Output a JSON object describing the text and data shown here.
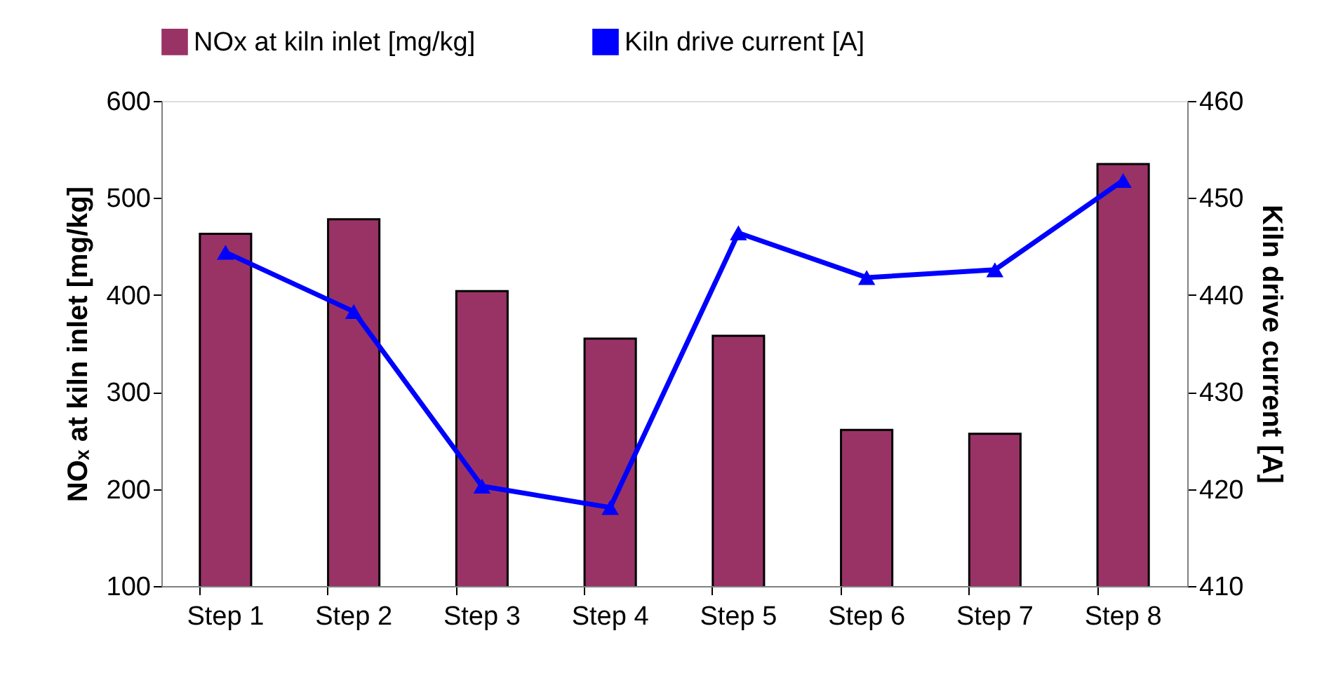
{
  "chart_data": {
    "type": "bar",
    "ylabel": "NOₓ at kiln inlet [mg/kg]",
    "y2label": "Kiln drive current [A]",
    "categories": [
      "Step 1",
      "Step 2",
      "Step 3",
      "Step 4",
      "Step 5",
      "Step 6",
      "Step 7",
      "Step 8"
    ],
    "series": [
      {
        "name": "NOx at kiln inlet [mg/kg]",
        "color": "#993366",
        "values": [
          463,
          478,
          404,
          355,
          358,
          261,
          257,
          535
        ]
      },
      {
        "name": "Kiln drive current [A]",
        "type": "line",
        "axis": "y2",
        "color": "#0000ff",
        "marker": "triangle",
        "values": [
          444.4,
          438.3,
          420.3,
          418.1,
          446.4,
          441.8,
          442.6,
          451.8
        ]
      }
    ],
    "ylim": [
      100,
      600
    ],
    "yticks": [
      100,
      200,
      300,
      400,
      500,
      600
    ],
    "y2lim": [
      410,
      460
    ],
    "y2ticks": [
      410,
      420,
      430,
      440,
      450,
      460
    ],
    "grid": false,
    "legend": "top"
  }
}
